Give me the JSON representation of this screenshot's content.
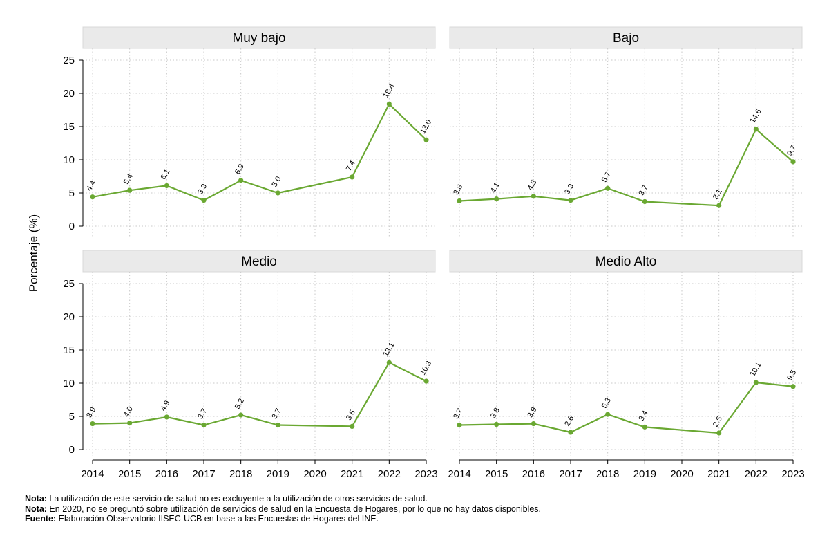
{
  "ylabel": "Porcentaje (%)",
  "line_color": "#6aa832",
  "header_fill": "#eaeaea",
  "notes": [
    {
      "label": "Nota:",
      "text": " La utilización de este servicio de salud no es excluyente a la utilización de otros servicios de salud."
    },
    {
      "label": "Nota:",
      "text": " En 2020, no se preguntó sobre utilización de servicios de salud en la Encuesta de Hogares, por lo que no hay datos disponibles."
    },
    {
      "label": "Fuente:",
      "text": " Elaboración Observatorio IISEC-UCB en base a las Encuestas de Hogares del INE."
    }
  ],
  "chart_data": {
    "type": "line",
    "x_ticks": [
      2014,
      2015,
      2016,
      2017,
      2018,
      2019,
      2020,
      2021,
      2022,
      2023
    ],
    "y_ticks": [
      0,
      5,
      10,
      15,
      20,
      25
    ],
    "ylim": [
      0,
      25
    ],
    "xlim": [
      2014,
      2023
    ],
    "panels": [
      {
        "title": "Muy bajo",
        "x": [
          2014,
          2015,
          2016,
          2017,
          2018,
          2019,
          2021,
          2022,
          2023
        ],
        "values": [
          4.4,
          5.4,
          6.1,
          3.9,
          6.9,
          5.0,
          7.4,
          18.4,
          13.0
        ],
        "labels": [
          "4.4",
          "5.4",
          "6.1",
          "3.9",
          "6.9",
          "5.0",
          "7.4",
          "18.4",
          "13.0"
        ]
      },
      {
        "title": "Bajo",
        "x": [
          2014,
          2015,
          2016,
          2017,
          2018,
          2019,
          2021,
          2022,
          2023
        ],
        "values": [
          3.8,
          4.1,
          4.5,
          3.9,
          5.7,
          3.7,
          3.1,
          14.6,
          9.7
        ],
        "labels": [
          "3.8",
          "4.1",
          "4.5",
          "3.9",
          "5.7",
          "3.7",
          "3.1",
          "14.6",
          "9.7"
        ]
      },
      {
        "title": "Medio",
        "x": [
          2014,
          2015,
          2016,
          2017,
          2018,
          2019,
          2021,
          2022,
          2023
        ],
        "values": [
          3.9,
          4.0,
          4.9,
          3.7,
          5.2,
          3.7,
          3.5,
          13.1,
          10.3
        ],
        "labels": [
          "3.9",
          "4.0",
          "4.9",
          "3.7",
          "5.2",
          "3.7",
          "3.5",
          "13.1",
          "10.3"
        ]
      },
      {
        "title": "Medio Alto",
        "x": [
          2014,
          2015,
          2016,
          2017,
          2018,
          2019,
          2021,
          2022,
          2023
        ],
        "values": [
          3.7,
          3.8,
          3.9,
          2.6,
          5.3,
          3.4,
          2.5,
          10.1,
          9.5
        ],
        "labels": [
          "3.7",
          "3.8",
          "3.9",
          "2.6",
          "5.3",
          "3.4",
          "2.5",
          "10.1",
          "9.5"
        ]
      }
    ]
  }
}
